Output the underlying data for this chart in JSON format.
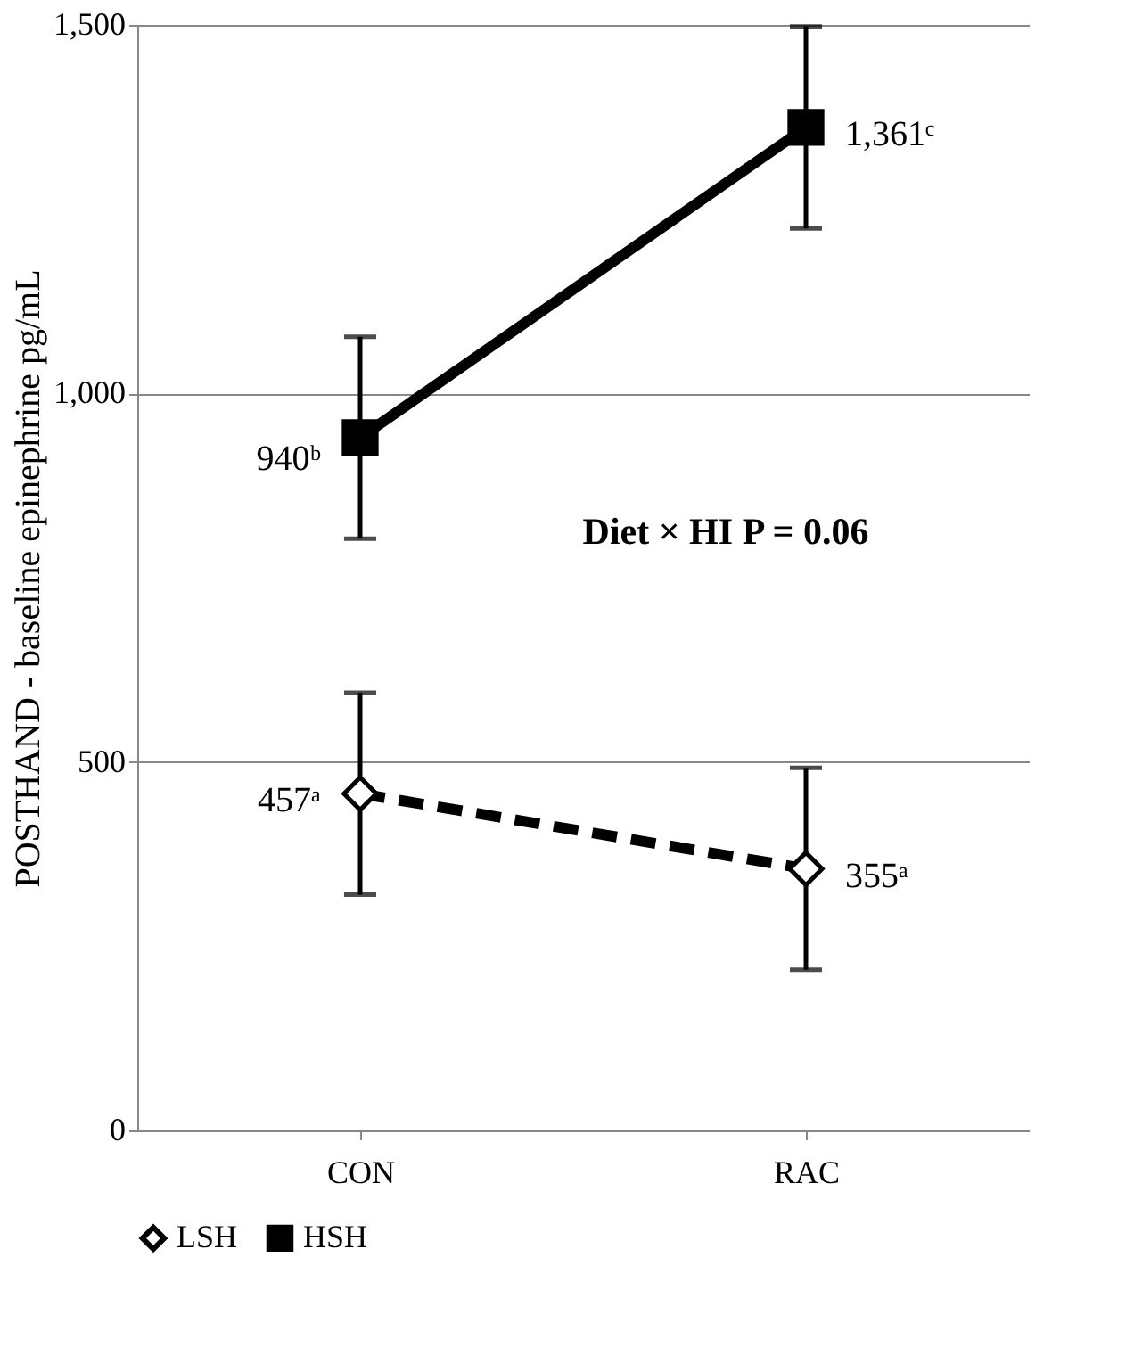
{
  "chart_data": {
    "type": "line",
    "ylabel": "POSTHAND - baseline epinephrine pg/mL",
    "categories": [
      "CON",
      "RAC"
    ],
    "ylim": [
      0,
      1500
    ],
    "yticks": [
      0,
      500,
      {
        "value": 1000,
        "label": "1,000"
      },
      {
        "value": 1500,
        "label": "1,500"
      }
    ],
    "grid": "y",
    "legend": "bottom",
    "series": [
      {
        "name": "LSH",
        "color": "#000000",
        "values": [
          457,
          355
        ],
        "errors": [
          137,
          137
        ],
        "value_labels": [
          "457ᵃ",
          "355ᵃ"
        ],
        "marker": "diamond",
        "line_style": "dashed"
      },
      {
        "name": "HSH",
        "color": "#000000",
        "values": [
          940,
          1361
        ],
        "errors": [
          137,
          137
        ],
        "value_labels": [
          "940ᵇ",
          "1,361ᶜ"
        ],
        "marker": "square",
        "line_style": "solid"
      }
    ],
    "annotations": [
      "Diet × HI P = 0.06"
    ]
  }
}
